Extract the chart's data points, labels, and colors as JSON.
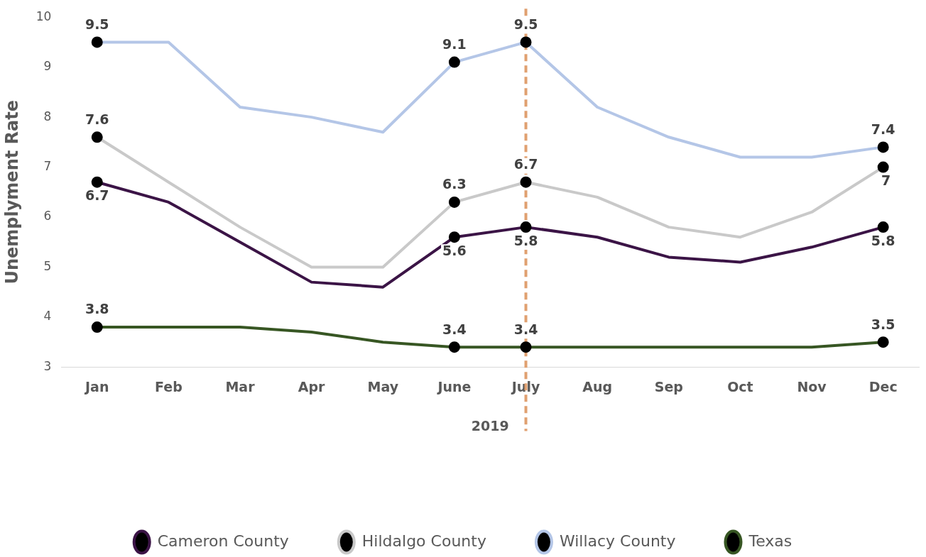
{
  "chart_data": {
    "type": "line",
    "xlabel": "2019",
    "ylabel": "Unemplyment Rate",
    "categories": [
      "Jan",
      "Feb",
      "Mar",
      "Apr",
      "May",
      "June",
      "July",
      "Aug",
      "Sep",
      "Oct",
      "Nov",
      "Dec"
    ],
    "series": [
      {
        "name": "Cameron County",
        "color": "#3b1446",
        "values": [
          6.7,
          6.3,
          5.5,
          4.7,
          4.6,
          5.6,
          5.8,
          5.6,
          5.2,
          5.1,
          5.4,
          5.8
        ],
        "value_labels": [
          "6.7",
          null,
          null,
          null,
          null,
          "5.6",
          "5.8",
          null,
          null,
          null,
          null,
          "5.8"
        ]
      },
      {
        "name": "Hildalgo County",
        "color": "#c9c9c9",
        "values": [
          7.6,
          6.7,
          5.8,
          5.0,
          5.0,
          6.3,
          6.7,
          6.4,
          5.8,
          5.6,
          6.1,
          7.0
        ],
        "value_labels": [
          "7.6",
          null,
          null,
          null,
          null,
          "6.3",
          "6.7",
          null,
          null,
          null,
          null,
          "7"
        ]
      },
      {
        "name": "Willacy County",
        "color": "#b4c6e7",
        "values": [
          9.5,
          9.5,
          8.2,
          8.0,
          7.7,
          9.1,
          9.5,
          8.2,
          7.6,
          7.2,
          7.2,
          7.4
        ],
        "value_labels": [
          "9.5",
          null,
          null,
          null,
          null,
          "9.1",
          "9.5",
          null,
          null,
          null,
          null,
          "7.4"
        ]
      },
      {
        "name": "Texas",
        "color": "#375623",
        "values": [
          3.8,
          3.8,
          3.8,
          3.7,
          3.5,
          3.4,
          3.4,
          3.4,
          3.4,
          3.4,
          3.4,
          3.5
        ],
        "value_labels": [
          "3.8",
          null,
          null,
          null,
          null,
          "3.4",
          "3.4",
          null,
          null,
          null,
          null,
          "3.5"
        ]
      }
    ],
    "ylim": [
      3,
      10
    ],
    "yticks": [
      3,
      4,
      5,
      6,
      7,
      8,
      9,
      10
    ],
    "grid": false,
    "legend": "bottom",
    "line_style": "solid",
    "ref_lines": [
      {
        "axis": "x",
        "value": "July",
        "color": "#e0a070",
        "line_style": "dashed"
      }
    ]
  }
}
